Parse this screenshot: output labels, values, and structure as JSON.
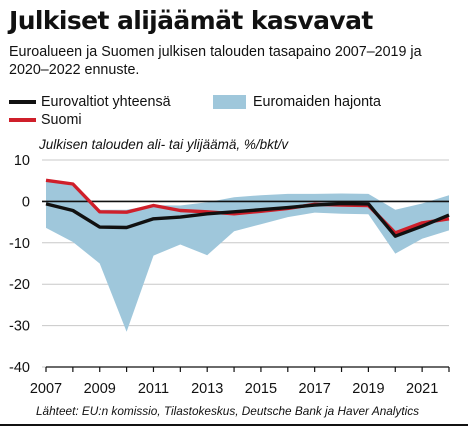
{
  "title": "Julkiset alijäämät kasvavat",
  "subtitle": "Euroalueen ja Suomen julkisen talouden tasapaino 2007–2019 ja 2020–2022 ennuste.",
  "legend": {
    "eurozone": "Eurovaltiot yhteensä",
    "finland": "Suomi",
    "range": "Euromaiden hajonta"
  },
  "source": "Lähteet: EU:n komissio, Tilastokeskus, Deutsche Bank ja Haver Analytics",
  "colors": {
    "eurozone": "#111111",
    "finland": "#cf1f2a",
    "range": "#9fc7db",
    "grid": "#c8c8c8"
  },
  "chart_data": {
    "type": "area",
    "title": "Julkiset alijäämät kasvavat",
    "ylabel": "Julkisen talouden ali- tai ylijäämä, %/bkt/v",
    "xlabel": "",
    "xlim": [
      2007,
      2022
    ],
    "ylim": [
      -40,
      10
    ],
    "x_ticks": [
      2007,
      2009,
      2011,
      2013,
      2015,
      2017,
      2019,
      2021
    ],
    "x_tick_labels": [
      "2007",
      "2009",
      "2011",
      "2013",
      "2015",
      "2017",
      "2019",
      "2021"
    ],
    "y_ticks": [
      10,
      0,
      -10,
      -20,
      -30,
      -40
    ],
    "y_tick_labels": [
      "10",
      "0",
      "-10",
      "-20",
      "-30",
      "-40"
    ],
    "grid": true,
    "legend_position": "top",
    "x": [
      2007,
      2008,
      2009,
      2010,
      2011,
      2012,
      2013,
      2014,
      2015,
      2016,
      2017,
      2018,
      2019,
      2020,
      2021,
      2022
    ],
    "series": [
      {
        "name": "Eurovaltiot yhteensä",
        "type": "line",
        "color": "#111111",
        "values": [
          -0.6,
          -2.2,
          -6.2,
          -6.3,
          -4.2,
          -3.8,
          -3.0,
          -2.5,
          -2.0,
          -1.5,
          -0.9,
          -0.5,
          -0.6,
          -8.4,
          -6.0,
          -3.3
        ]
      },
      {
        "name": "Suomi",
        "type": "line",
        "color": "#cf1f2a",
        "values": [
          5.1,
          4.2,
          -2.5,
          -2.6,
          -1.0,
          -2.2,
          -2.5,
          -3.0,
          -2.4,
          -1.7,
          -0.7,
          -0.9,
          -1.0,
          -7.6,
          -5.2,
          -4.2
        ]
      },
      {
        "name": "Euromaiden hajonta",
        "type": "range",
        "color": "#9fc7db",
        "upper": [
          5.0,
          3.8,
          -2.0,
          -2.0,
          -0.9,
          -1.0,
          -0.2,
          1.0,
          1.5,
          1.8,
          1.8,
          1.9,
          1.8,
          -2.0,
          -0.5,
          1.5
        ],
        "lower": [
          -6.4,
          -9.8,
          -15.0,
          -31.5,
          -13.1,
          -10.4,
          -13.0,
          -7.2,
          -5.5,
          -3.8,
          -2.7,
          -3.0,
          -3.1,
          -12.6,
          -9.0,
          -7.0
        ]
      }
    ]
  }
}
